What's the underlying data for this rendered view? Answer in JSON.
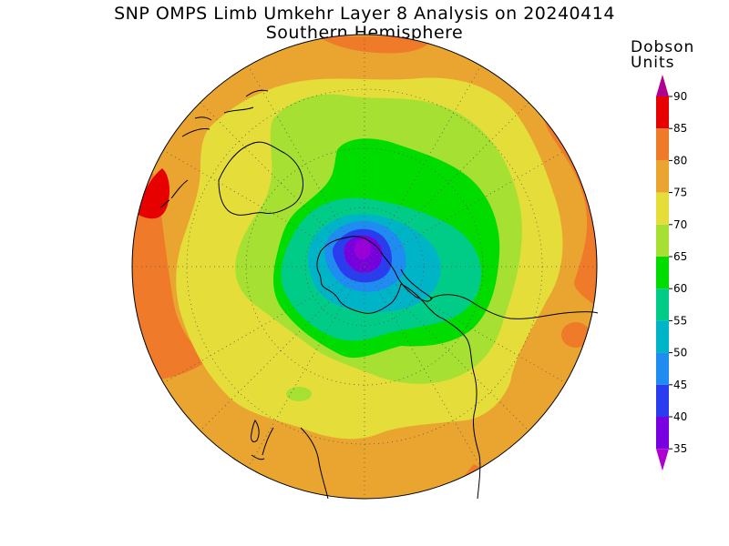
{
  "header": {
    "title": "SNP OMPS Limb Umkehr Layer 8 Analysis on 20240414",
    "subtitle": "Southern Hemisphere"
  },
  "colorbar": {
    "label_line1": "Dobson",
    "label_line2": "Units",
    "ticks": [
      "90",
      "85",
      "80",
      "75",
      "70",
      "65",
      "60",
      "55",
      "50",
      "45",
      "40",
      "35"
    ],
    "colors": {
      "gt90": "#b00090",
      "85_90": "#e60000",
      "80_85": "#ee7a2a",
      "75_80": "#e9a530",
      "70_75": "#e5de3a",
      "65_70": "#a6e032",
      "60_65": "#00dc00",
      "55_60": "#00cc88",
      "50_55": "#00b4c8",
      "45_50": "#1e8cf0",
      "40_45": "#2a3cf0",
      "35_40": "#7800e0",
      "lt35": "#b000d0"
    }
  },
  "map": {
    "projection": "polar-stereographic",
    "hemisphere": "south",
    "graticule": "dotted"
  }
}
